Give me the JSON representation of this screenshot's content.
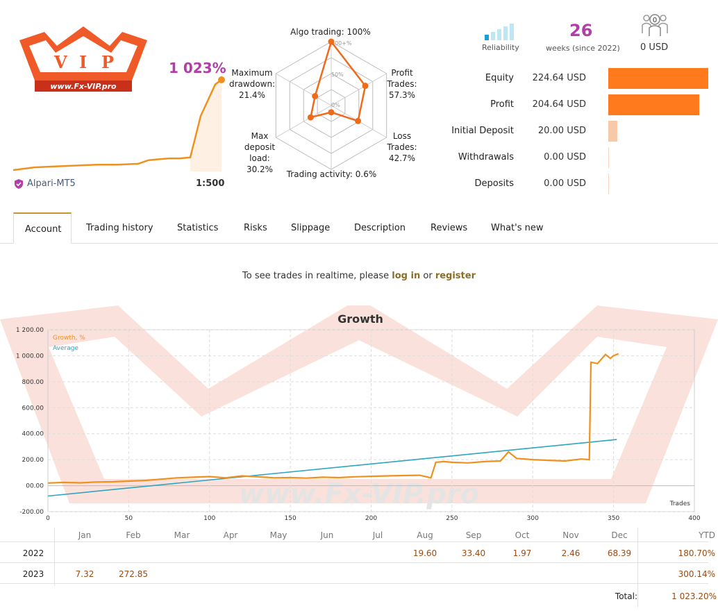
{
  "logo": {
    "text": "www.Fx-VIP.pro",
    "letters": [
      "V",
      "I",
      "P"
    ]
  },
  "header": {
    "growth": "1 023%",
    "broker": "Alpari-MT5",
    "leverage": "1:500"
  },
  "mini_chart": {
    "type": "line",
    "x": [
      0,
      10,
      20,
      30,
      40,
      50,
      60,
      65,
      70,
      75,
      80,
      85,
      90,
      93,
      95,
      97,
      100
    ],
    "y": [
      0,
      3,
      4,
      5,
      6,
      6,
      7,
      11,
      12,
      13,
      13,
      14,
      60,
      75,
      85,
      95,
      100
    ]
  },
  "radar": {
    "labels": {
      "algo": "Algo trading: 100%",
      "profit": [
        "Profit",
        "Trades:",
        "57.3%"
      ],
      "loss": [
        "Loss",
        "Trades:",
        "42.7%"
      ],
      "activity": "Trading activity: 0.6%",
      "deposit_load": [
        "Max",
        "deposit",
        "load:",
        "30.2%"
      ],
      "drawdown": [
        "Maximum",
        "drawdown:",
        "21.4%"
      ]
    },
    "scale_labels": [
      "100+%",
      "50%",
      "0%"
    ],
    "values": [
      100,
      57.3,
      42.7,
      0.6,
      30.2,
      21.4
    ]
  },
  "top_stats": {
    "reliability_label": "Reliability",
    "weeks": "26",
    "weeks_label": "weeks (since 2022)",
    "subscribers": "0",
    "subscribers_funds": "0 USD"
  },
  "account_stats": [
    {
      "label": "Equity",
      "value": "224.64 USD",
      "fraction": 1.0
    },
    {
      "label": "Profit",
      "value": "204.64 USD",
      "fraction": 0.91
    },
    {
      "label": "Initial Deposit",
      "value": "20.00 USD",
      "fraction": 0.09
    },
    {
      "label": "Withdrawals",
      "value": "0.00 USD",
      "fraction": 0
    },
    {
      "label": "Deposits",
      "value": "0.00 USD",
      "fraction": 0
    }
  ],
  "tabs": [
    "Account",
    "Trading history",
    "Statistics",
    "Risks",
    "Slippage",
    "Description",
    "Reviews",
    "What's new"
  ],
  "realtime": {
    "prefix": "To see trades in realtime, please",
    "login": "log in",
    "or": "or",
    "register": "register"
  },
  "chart_data": {
    "type": "line",
    "title": "Growth",
    "xlabel": "Trades",
    "xlim": [
      0,
      400
    ],
    "ylim": [
      -200,
      1200
    ],
    "xticks": [
      "0",
      "50",
      "100",
      "150",
      "200",
      "250",
      "300",
      "350",
      "400"
    ],
    "yticks": [
      "-200.00",
      "00.00",
      "200.00",
      "400.00",
      "600.00",
      "800.00",
      "1 000.00",
      "1 200.00"
    ],
    "series": [
      {
        "name": "Growth, %",
        "color": "#f0901e",
        "x": [
          0,
          10,
          20,
          30,
          40,
          50,
          60,
          70,
          80,
          90,
          100,
          110,
          120,
          130,
          140,
          150,
          160,
          170,
          180,
          190,
          200,
          210,
          220,
          230,
          237,
          240,
          245,
          250,
          260,
          270,
          280,
          285,
          290,
          300,
          310,
          320,
          330,
          335,
          336,
          340,
          345,
          348,
          350,
          353
        ],
        "y": [
          20,
          25,
          22,
          28,
          30,
          35,
          40,
          50,
          60,
          65,
          70,
          60,
          75,
          68,
          60,
          62,
          58,
          65,
          62,
          68,
          72,
          75,
          78,
          80,
          60,
          180,
          185,
          180,
          175,
          185,
          190,
          260,
          210,
          200,
          195,
          190,
          205,
          200,
          950,
          940,
          1010,
          980,
          1000,
          1015
        ]
      },
      {
        "name": "Average",
        "color": "#2aa6c1",
        "x": [
          0,
          352
        ],
        "y": [
          -80,
          355
        ]
      }
    ]
  },
  "monthly": {
    "months": [
      "Jan",
      "Feb",
      "Mar",
      "Apr",
      "May",
      "Jun",
      "Jul",
      "Aug",
      "Sep",
      "Oct",
      "Nov",
      "Dec"
    ],
    "ytd_label": "YTD",
    "rows": [
      {
        "year": "2022",
        "values": [
          "",
          "",
          "",
          "",
          "",
          "",
          "",
          "19.60",
          "33.40",
          "1.97",
          "2.46",
          "68.39"
        ],
        "ytd": "180.70%"
      },
      {
        "year": "2023",
        "values": [
          "7.32",
          "272.85",
          "",
          "",
          "",
          "",
          "",
          "",
          "",
          "",
          "",
          ""
        ],
        "ytd": "300.14%"
      }
    ],
    "total_label": "Total:",
    "total": "1 023.20%"
  },
  "colors": {
    "accent": "#b03fa7",
    "orange": "#ff7a1c",
    "tab_border": "#c4982e"
  }
}
